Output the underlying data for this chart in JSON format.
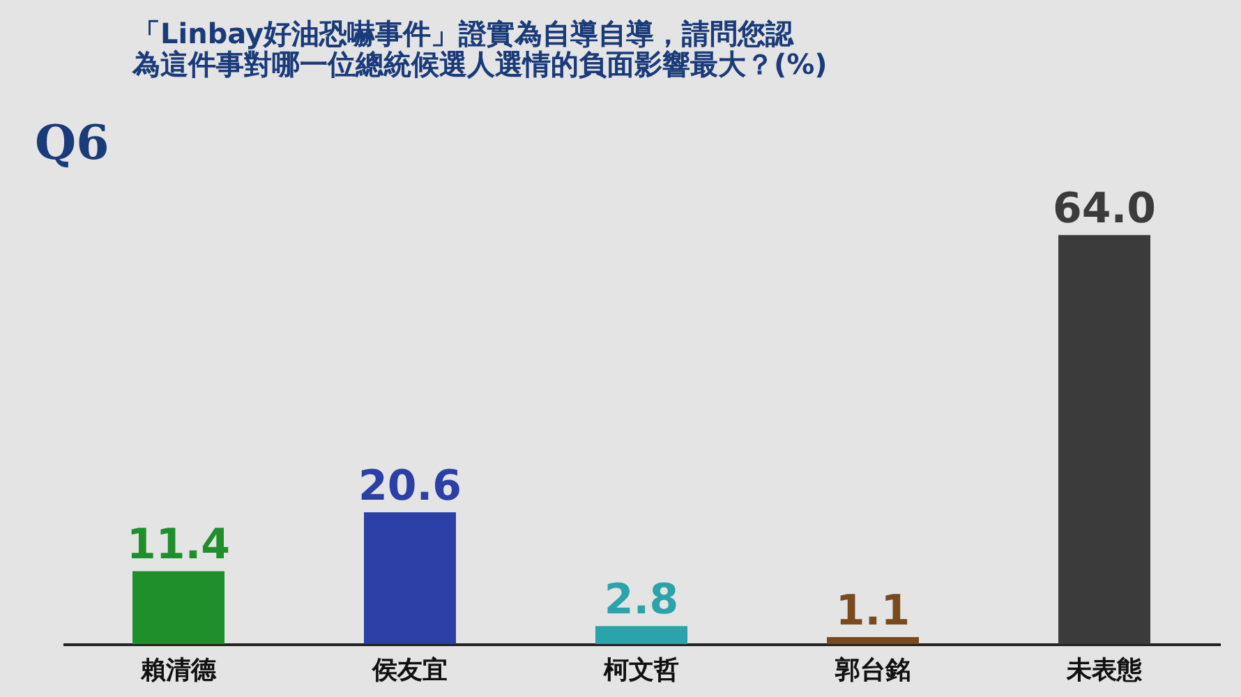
{
  "chart_data": {
    "type": "bar",
    "title": "「Linbay好油恐嚇事件」證實為自導自導，請問您認為這件事對哪一位總統候選人選情的負面影響最大？(%)",
    "annotations": [
      "Q6"
    ],
    "categories": [
      "賴清德",
      "侯友宜",
      "柯文哲",
      "郭台銘",
      "未表態"
    ],
    "values": [
      11.4,
      20.6,
      2.8,
      1.1,
      64.0
    ],
    "colors": [
      "#1f8f2c",
      "#2b3fa6",
      "#2aa3ab",
      "#7a4a1f",
      "#3b3b3b"
    ],
    "value_labels": [
      "11.4",
      "20.6",
      "2.8",
      "1.1",
      "64.0"
    ],
    "tick_labels": "x"
  }
}
